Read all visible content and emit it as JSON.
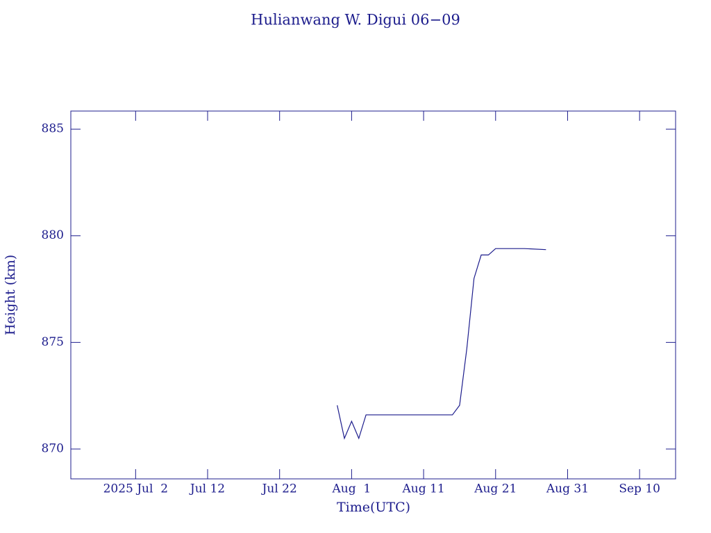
{
  "chart_data": {
    "type": "line",
    "title": "Hulianwang W. Digui 06−09",
    "x_label": "Time(UTC)",
    "y_label": "Height (km)",
    "x": [
      "2025-07-30",
      "2025-07-31",
      "2025-08-01",
      "2025-08-02",
      "2025-08-03",
      "2025-08-15",
      "2025-08-16",
      "2025-08-17",
      "2025-08-18",
      "2025-08-19",
      "2025-08-20",
      "2025-08-21",
      "2025-08-25",
      "2025-08-28"
    ],
    "series": [
      {
        "name": "Height",
        "color": "#1c1c8c",
        "values": [
          872.05,
          870.5,
          871.3,
          870.5,
          871.6,
          871.6,
          872.05,
          874.7,
          878.0,
          879.1,
          879.1,
          879.4,
          879.4,
          879.35
        ]
      }
    ],
    "xlim": [
      "2025-06-23",
      "2025-09-15"
    ],
    "xticks": [
      {
        "value": "2025-07-02",
        "label": "2025 Jul  2"
      },
      {
        "value": "2025-07-12",
        "label": "Jul 12"
      },
      {
        "value": "2025-07-22",
        "label": "Jul 22"
      },
      {
        "value": "2025-08-01",
        "label": "Aug  1"
      },
      {
        "value": "2025-08-11",
        "label": "Aug 11"
      },
      {
        "value": "2025-08-21",
        "label": "Aug 21"
      },
      {
        "value": "2025-08-31",
        "label": "Aug 31"
      },
      {
        "value": "2025-09-10",
        "label": "Sep 10"
      }
    ],
    "ylim": [
      868.6,
      885.85
    ],
    "yticks": [
      870,
      875,
      880,
      885
    ],
    "grid": false
  }
}
